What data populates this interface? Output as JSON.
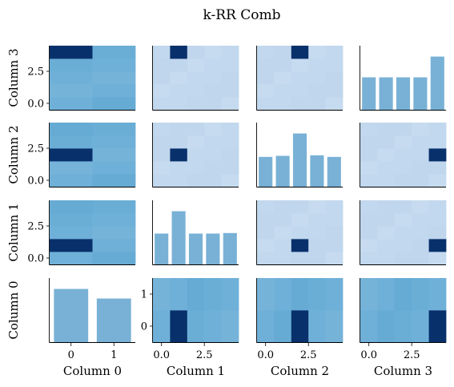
{
  "title": "k-RR Comb",
  "colors": {
    "pale": "#c1d8ee",
    "pale2": "#bfd6ed",
    "pale3": "#c6dbef",
    "mid": "#6fb0d8",
    "mid2": "#6aaed6",
    "mid3": "#75b3d9",
    "mid4": "#66abd4",
    "dark": "#08306b",
    "bar": "#79b1d6"
  },
  "chart_data": {
    "type": "heatmap",
    "title": "k-RR Comb",
    "variables": [
      "Column 0",
      "Column 1",
      "Column 2",
      "Column 3"
    ],
    "levels": [
      2,
      5,
      5,
      5
    ],
    "x_ticks": [
      {
        "values": [
          0,
          1
        ],
        "labels": [
          "0",
          "1"
        ]
      },
      {
        "values": [
          0,
          2.5
        ],
        "labels": [
          "0.0",
          "2.5"
        ]
      },
      {
        "values": [
          0,
          2.5
        ],
        "labels": [
          "0.0",
          "2.5"
        ]
      },
      {
        "values": [
          0,
          2.5
        ],
        "labels": [
          "0.0",
          "2.5"
        ]
      }
    ],
    "y_ticks": [
      {
        "values": [
          0,
          1
        ],
        "labels": [
          "0",
          "1"
        ]
      },
      {
        "values": [
          0,
          2.5
        ],
        "labels": [
          "0.0",
          "2.5"
        ]
      },
      {
        "values": [
          0,
          2.5
        ],
        "labels": [
          "0.0",
          "2.5"
        ]
      },
      {
        "values": [
          0,
          2.5
        ],
        "labels": [
          "0.0",
          "2.5"
        ]
      }
    ],
    "diagonal_histograms": [
      {
        "variable": "Column 0",
        "values": [
          1.0,
          0.82
        ]
      },
      {
        "variable": "Column 1",
        "values": [
          0.58,
          1.0,
          0.58,
          0.58,
          0.59
        ]
      },
      {
        "variable": "Column 2",
        "values": [
          0.56,
          0.58,
          1.0,
          0.59,
          0.56
        ]
      },
      {
        "variable": "Column 3",
        "values": [
          0.61,
          0.61,
          0.61,
          0.61,
          1.0
        ]
      }
    ],
    "pair_heatmaps": [
      {
        "row": "Column 3",
        "col": "Column 0",
        "base": "mid",
        "dark_cell": [
          0,
          4
        ]
      },
      {
        "row": "Column 3",
        "col": "Column 1",
        "base": "pale",
        "dark_cell": [
          1,
          4
        ]
      },
      {
        "row": "Column 3",
        "col": "Column 2",
        "base": "pale",
        "dark_cell": [
          2,
          4
        ]
      },
      {
        "row": "Column 2",
        "col": "Column 0",
        "base": "mid",
        "dark_cell": [
          0,
          2
        ]
      },
      {
        "row": "Column 2",
        "col": "Column 1",
        "base": "pale",
        "dark_cell": [
          1,
          2
        ]
      },
      {
        "row": "Column 2",
        "col": "Column 3",
        "base": "pale",
        "dark_cell": [
          4,
          2
        ]
      },
      {
        "row": "Column 1",
        "col": "Column 0",
        "base": "mid",
        "dark_cell": [
          0,
          1
        ]
      },
      {
        "row": "Column 1",
        "col": "Column 2",
        "base": "pale",
        "dark_cell": [
          2,
          1
        ]
      },
      {
        "row": "Column 1",
        "col": "Column 3",
        "base": "pale",
        "dark_cell": [
          4,
          1
        ]
      },
      {
        "row": "Column 0",
        "col": "Column 1",
        "base": "mid",
        "dark_cell": [
          1,
          0
        ]
      },
      {
        "row": "Column 0",
        "col": "Column 2",
        "base": "mid",
        "dark_cell": [
          2,
          0
        ]
      },
      {
        "row": "Column 0",
        "col": "Column 3",
        "base": "mid",
        "dark_cell": [
          4,
          0
        ]
      }
    ],
    "grid": false,
    "legend": "none"
  }
}
